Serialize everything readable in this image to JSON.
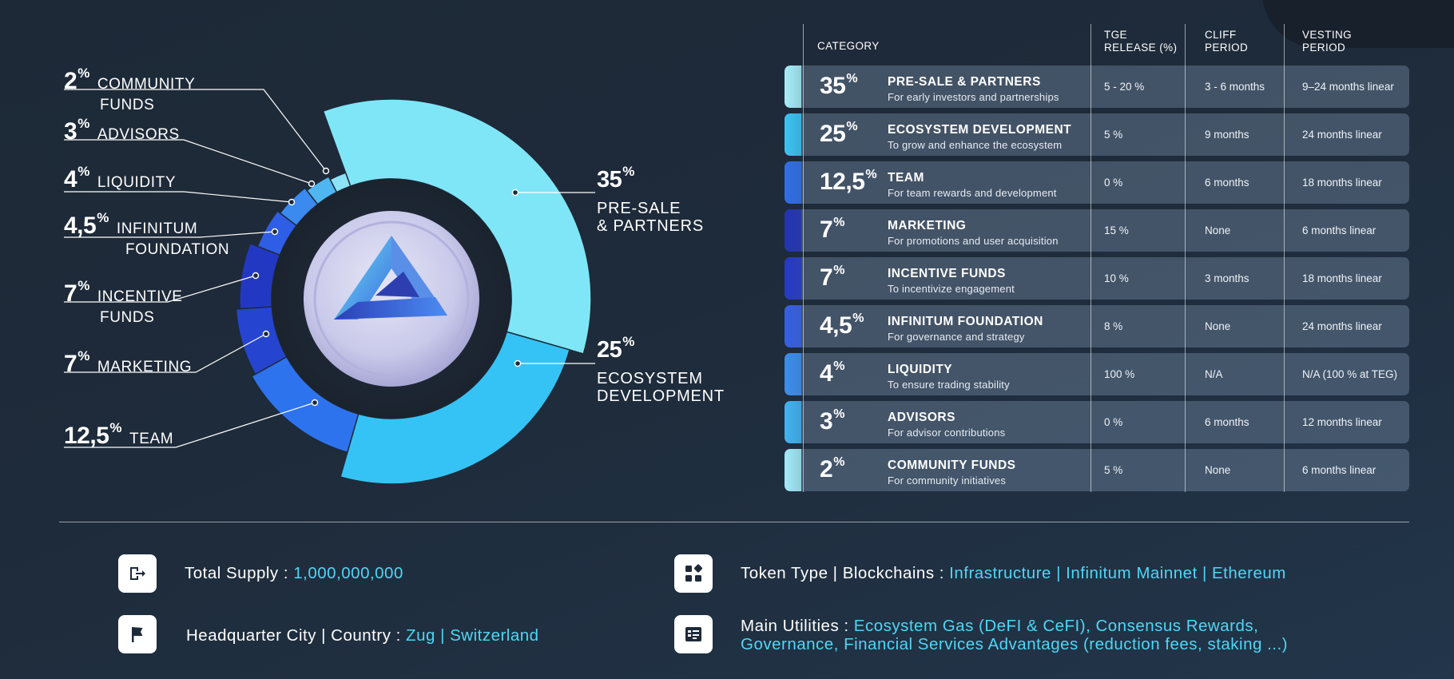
{
  "chart_data": {
    "type": "pie",
    "categories": [
      "Pre-Sale & Partners",
      "Ecosystem Development",
      "Team",
      "Marketing",
      "Incentive Funds",
      "Infinitum Foundation",
      "Liquidity",
      "Advisors",
      "Community Funds"
    ],
    "values": [
      35,
      25,
      12.5,
      7,
      7,
      4.5,
      4,
      3,
      2
    ],
    "colors": [
      "#7fe6f7",
      "#35c3f5",
      "#2e73ee",
      "#2544cf",
      "#2338c2",
      "#2f5ee6",
      "#3a8af0",
      "#4fb6f2",
      "#8be3f5"
    ]
  },
  "donut_labels": {
    "presale": {
      "pct": "35",
      "line1": "PRE-SALE",
      "line2": "& PARTNERS"
    },
    "ecosystem": {
      "pct": "25",
      "line1": "ECOSYSTEM",
      "line2": "DEVELOPMENT"
    },
    "community": {
      "pct": "2",
      "line1": "COMMUNITY",
      "line2": "FUNDS"
    },
    "advisors": {
      "pct": "3",
      "line1": "ADVISORS"
    },
    "liquidity": {
      "pct": "4",
      "line1": "LIQUIDITY"
    },
    "foundation": {
      "pct": "4,5",
      "line1": "INFINITUM",
      "line2": "FOUNDATION"
    },
    "incentive": {
      "pct": "7",
      "line1": "INCENTIVE",
      "line2": "FUNDS"
    },
    "marketing": {
      "pct": "7",
      "line1": "MARKETING"
    },
    "team": {
      "pct": "12,5",
      "line1": "TEAM"
    }
  },
  "percent_sign": "%",
  "table": {
    "headers": {
      "category": "CATEGORY",
      "tge_line1": "TGE",
      "tge_line2": "RELEASE (%)",
      "cliff_line1": "CLIFF",
      "cliff_line2": "PERIOD",
      "vesting_line1": "VESTING",
      "vesting_line2": "PERIOD"
    },
    "rows": [
      {
        "pct": "35",
        "title": "PRE-SALE & PARTNERS",
        "sub": "For early investors and partnerships",
        "tge": "5 - 20 %",
        "cliff": "3 - 6 months",
        "vesting": "9–24 months linear",
        "color": "#a6eef9"
      },
      {
        "pct": "25",
        "title": "ECOSYSTEM DEVELOPMENT",
        "sub": "To grow and enhance the ecosystem",
        "tge": "5  %",
        "cliff": "9 months",
        "vesting": "24 months linear",
        "color": "#39c4f4"
      },
      {
        "pct": "12,5",
        "title": "TEAM",
        "sub": "For team rewards and development",
        "tge": "0 %",
        "cliff": "6 months",
        "vesting": "18 months linear",
        "color": "#2f6ee8"
      },
      {
        "pct": "7",
        "title": "MARKETING",
        "sub": "For promotions and user acquisition",
        "tge": "15 %",
        "cliff": "None",
        "vesting": "6 months linear",
        "color": "#2233b5"
      },
      {
        "pct": "7",
        "title": "INCENTIVE FUNDS",
        "sub": "To incentivize engagement",
        "tge": "10 %",
        "cliff": "3 months",
        "vesting": "18 months linear",
        "color": "#2639c8"
      },
      {
        "pct": "4,5",
        "title": "INFINITUM FOUNDATION",
        "sub": "For governance and strategy",
        "tge": "8 %",
        "cliff": "None",
        "vesting": "24 months linear",
        "color": "#3560e6"
      },
      {
        "pct": "4",
        "title": "LIQUIDITY",
        "sub": "To ensure trading stability",
        "tge": "100 %",
        "cliff": "N/A",
        "vesting": "N/A (100 % at TEG)",
        "color": "#3b8ef0"
      },
      {
        "pct": "3",
        "title": "ADVISORS",
        "sub": "For advisor contributions",
        "tge": "0 %",
        "cliff": "6 months",
        "vesting": "12 months linear",
        "color": "#3fb3f2"
      },
      {
        "pct": "2",
        "title": "COMMUNITY FUNDS",
        "sub": "For community initiatives",
        "tge": "5 %",
        "cliff": "None",
        "vesting": "6 months linear",
        "color": "#a3ecf8"
      }
    ]
  },
  "info": {
    "supply_label": "Total Supply : ",
    "supply_value": "1,000,000,000",
    "hq_label": "Headquarter City | Country : ",
    "hq_value": "Zug | Switzerland",
    "token_label": "Token Type | Blockchains : ",
    "token_value": "Infrastructure | Infinitum Mainnet | Ethereum",
    "util_label": "Main Utilities : ",
    "util_value_line1": "Ecosystem Gas (DeFI & CeFI), Consensus Rewards,",
    "util_value_line2": "Governance, Financial Services Advantages (reduction fees, staking ...)",
    "icons": [
      "exit-icon",
      "flag-icon",
      "apps-grid-icon",
      "list-icon"
    ]
  }
}
